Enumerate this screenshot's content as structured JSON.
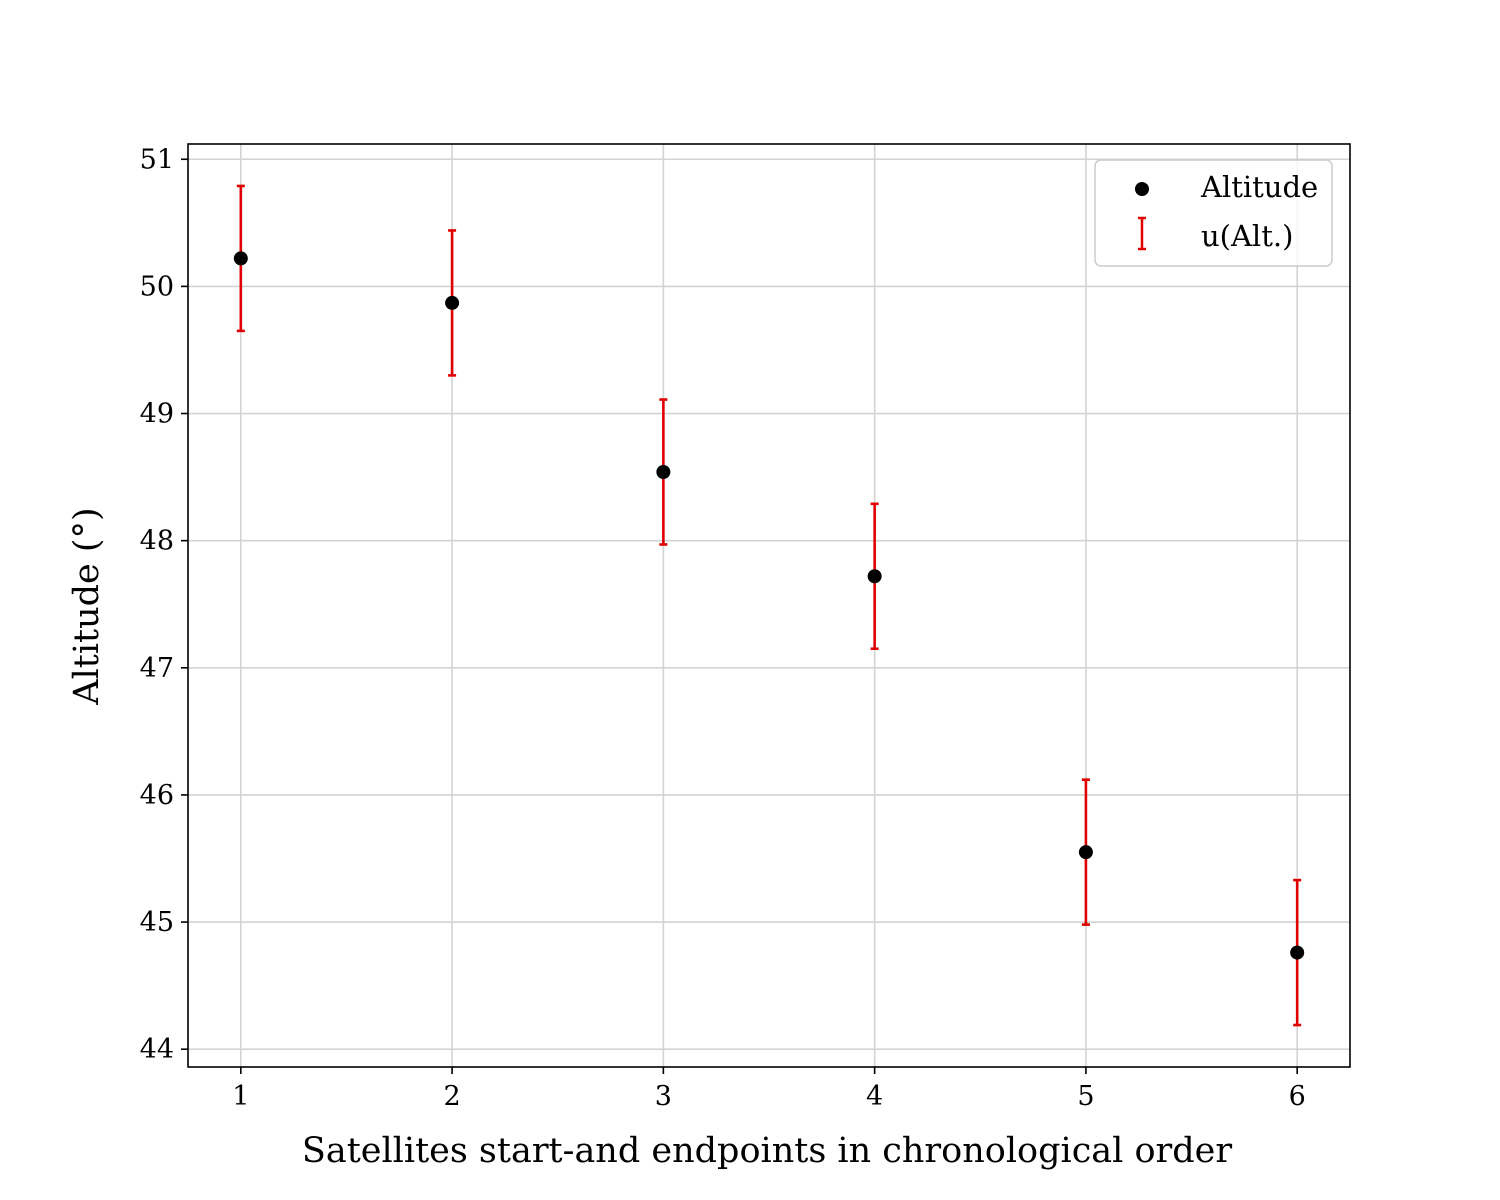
{
  "chart_data": {
    "type": "scatter",
    "xlabel": "Satellites start-and endpoints in chronological order",
    "ylabel": "Altitude (°)",
    "x": [
      1,
      2,
      3,
      4,
      5,
      6
    ],
    "xlim": [
      0.75,
      6.25
    ],
    "ylim": [
      43.86,
      51.12
    ],
    "xticks": [
      1,
      2,
      3,
      4,
      5,
      6
    ],
    "yticks": [
      44,
      45,
      46,
      47,
      48,
      49,
      50,
      51
    ],
    "grid": true,
    "legend_position": "top-right",
    "series": [
      {
        "name": "Altitude",
        "kind": "points",
        "color": "#000000",
        "values": [
          50.22,
          49.87,
          48.54,
          47.72,
          45.55,
          44.76
        ]
      },
      {
        "name": "u(Alt.)",
        "kind": "errorbars",
        "color": "#e00000",
        "values": [
          0.57,
          0.57,
          0.57,
          0.57,
          0.57,
          0.57
        ]
      }
    ]
  }
}
